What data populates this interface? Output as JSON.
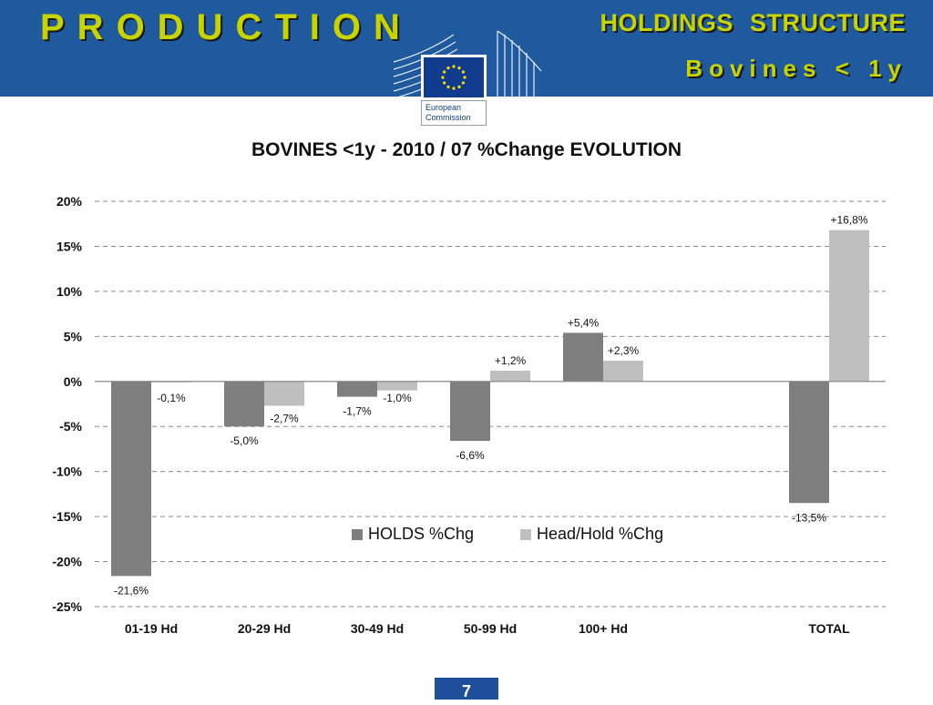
{
  "header": {
    "production": "PRODUCTION",
    "holdings_structure": "HOLDINGS   STRUCTURE",
    "bovines": "Bovines   < 1y",
    "logo_line1": "European",
    "logo_line2": "Commission"
  },
  "colors": {
    "band": "#1f5a9e",
    "title_accent": "#c8d400",
    "holds": "#7f7f7f",
    "headhold": "#bfbfbf"
  },
  "chart_data": {
    "type": "bar",
    "title": "BOVINES <1y   -   2010 / 07   %Change EVOLUTION",
    "categories": [
      "01-19 Hd",
      "20-29 Hd",
      "30-49 Hd",
      "50-99 Hd",
      "100+ Hd",
      "",
      "TOTAL"
    ],
    "series": [
      {
        "name": "HOLDS %Chg",
        "color": "#7f7f7f",
        "values": [
          -21.6,
          -5.0,
          -1.7,
          -6.6,
          5.4,
          null,
          -13.5
        ],
        "labels": [
          "-21,6%",
          "-5,0%",
          "-1,7%",
          "-6,6%",
          "+5,4%",
          "",
          "-13,5%"
        ]
      },
      {
        "name": "Head/Hold %Chg",
        "color": "#bfbfbf",
        "values": [
          -0.1,
          -2.7,
          -1.0,
          1.2,
          2.3,
          null,
          16.8
        ],
        "labels": [
          "-0,1%",
          "-2,7%",
          "-1,0%",
          "+1,2%",
          "+2,3%",
          "",
          "+16,8%"
        ]
      }
    ],
    "ylim": [
      -25,
      20
    ],
    "yticks": [
      20,
      15,
      10,
      5,
      0,
      -5,
      -10,
      -15,
      -20,
      -25
    ],
    "ytick_labels": [
      "20%",
      "15%",
      "10%",
      "5%",
      "0%",
      "-5%",
      "-10%",
      "-15%",
      "-20%",
      "-25%"
    ],
    "grid": true,
    "legend": "inside-bottom-center"
  },
  "page": {
    "number": "7"
  }
}
